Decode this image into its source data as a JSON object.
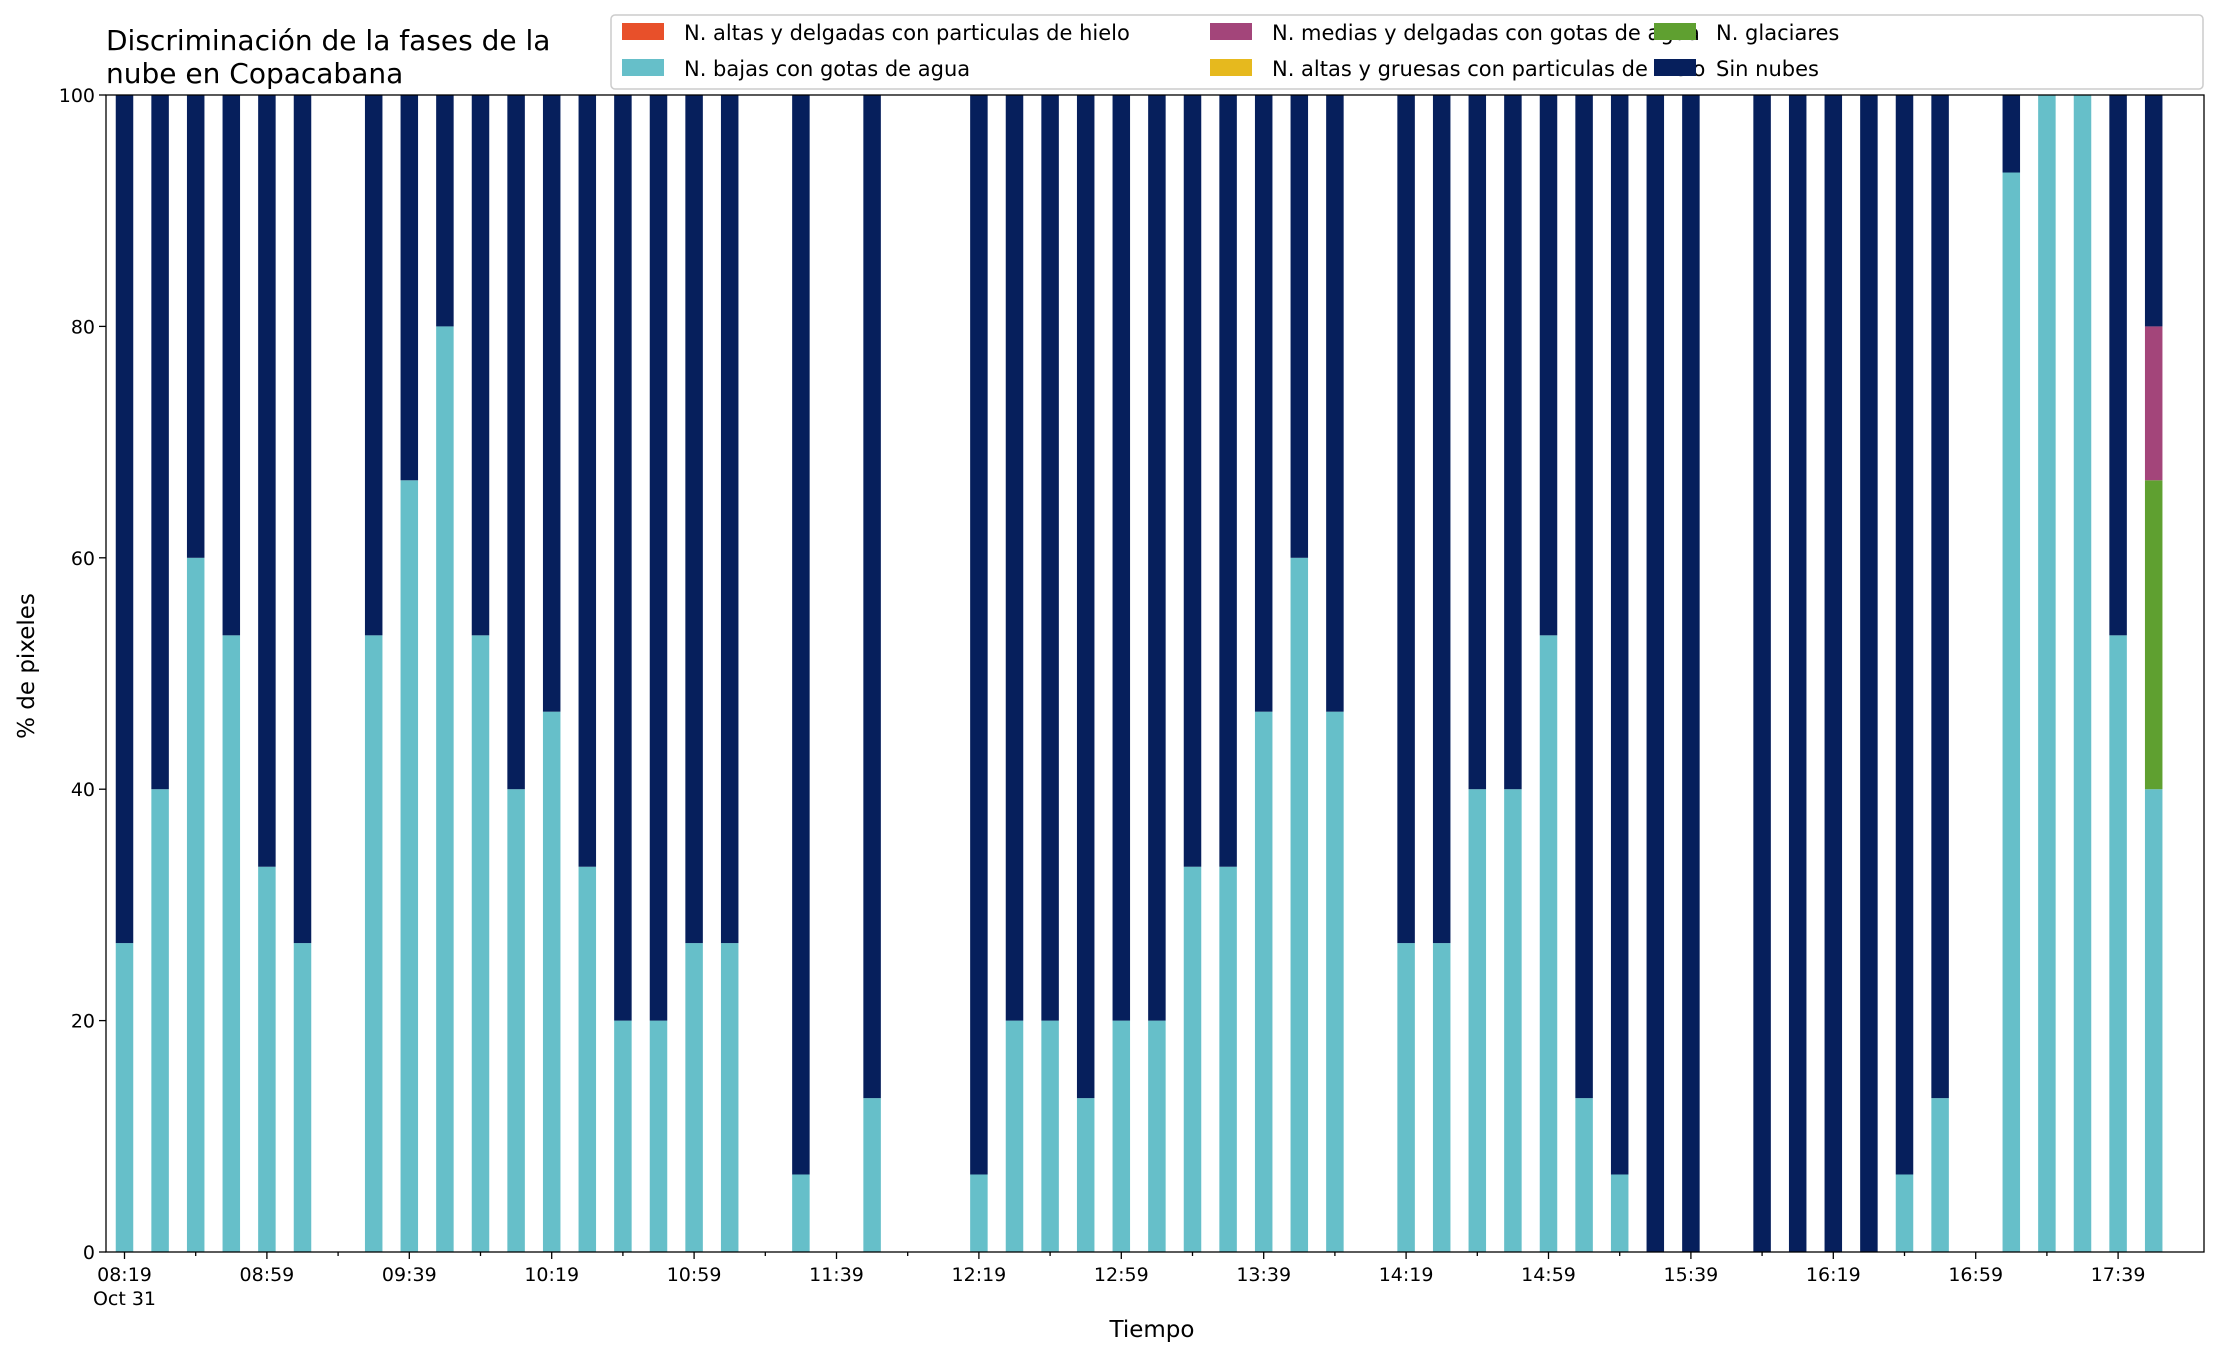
{
  "chart_data": {
    "type": "bar",
    "stacked": true,
    "title_lines": [
      "Discriminación de la fases de la",
      "nube en Copacabana"
    ],
    "xlabel": "Tiempo",
    "ylabel": "% de pixeles",
    "ylim": [
      0,
      100
    ],
    "y_ticks": [
      0,
      20,
      40,
      60,
      80,
      100
    ],
    "x_tick_labels": [
      "08:19",
      "08:59",
      "09:39",
      "10:19",
      "10:59",
      "11:39",
      "12:19",
      "12:59",
      "13:39",
      "14:19",
      "14:59",
      "15:39",
      "16:19",
      "16:59",
      "17:39"
    ],
    "x_date_label": "Oct 31",
    "x_start": "08:19",
    "x_step_minutes": 10,
    "grid": false,
    "legend_position": "top-right",
    "times": [
      "08:19",
      "08:29",
      "08:39",
      "08:49",
      "08:59",
      "09:09",
      "09:19",
      "09:29",
      "09:39",
      "09:49",
      "09:59",
      "10:09",
      "10:19",
      "10:29",
      "10:39",
      "10:49",
      "10:59",
      "11:09",
      "11:19",
      "11:29",
      "11:39",
      "11:49",
      "11:59",
      "12:09",
      "12:19",
      "12:29",
      "12:39",
      "12:49",
      "12:59",
      "13:09",
      "13:19",
      "13:29",
      "13:39",
      "13:49",
      "13:59",
      "14:09",
      "14:19",
      "14:29",
      "14:39",
      "14:49",
      "14:59",
      "15:09",
      "15:19",
      "15:29",
      "15:39",
      "15:49",
      "15:59",
      "16:09",
      "16:19",
      "16:29",
      "16:39",
      "16:49",
      "16:59",
      "17:09",
      "17:19",
      "17:29",
      "17:39",
      "17:49"
    ],
    "series": [
      {
        "name": "N. altas y delgadas con particulas de hielo",
        "color": "#e8502a",
        "values": [
          0,
          0,
          0,
          0,
          0,
          0,
          0,
          0,
          0,
          0,
          0,
          0,
          0,
          0,
          0,
          0,
          0,
          0,
          0,
          0,
          0,
          0,
          0,
          0,
          0,
          0,
          0,
          0,
          0,
          0,
          0,
          0,
          0,
          0,
          0,
          0,
          0,
          0,
          0,
          0,
          0,
          0,
          0,
          0,
          0,
          0,
          0,
          0,
          0,
          0,
          0,
          0,
          0,
          0,
          0,
          0,
          0,
          0
        ]
      },
      {
        "name": "N. altas y gruesas con particulas de hielo",
        "color": "#e6b91e",
        "values": [
          0,
          0,
          0,
          0,
          0,
          0,
          0,
          0,
          0,
          0,
          0,
          0,
          0,
          0,
          0,
          0,
          0,
          0,
          0,
          0,
          0,
          0,
          0,
          0,
          0,
          0,
          0,
          0,
          0,
          0,
          0,
          0,
          0,
          0,
          0,
          0,
          0,
          0,
          0,
          0,
          0,
          0,
          0,
          0,
          0,
          0,
          0,
          0,
          0,
          0,
          0,
          0,
          0,
          0,
          0,
          0,
          0,
          0
        ]
      },
      {
        "name": "N. bajas con gotas de agua",
        "color": "#66bfc9",
        "values": [
          26.7,
          40,
          60,
          53.3,
          33.3,
          26.7,
          null,
          53.3,
          66.7,
          80,
          53.3,
          40,
          46.7,
          33.3,
          20,
          20,
          26.7,
          26.7,
          null,
          6.7,
          null,
          13.3,
          null,
          null,
          6.7,
          20,
          20,
          13.3,
          20,
          20,
          33.3,
          33.3,
          46.7,
          60,
          46.7,
          null,
          26.7,
          26.7,
          40,
          40,
          53.3,
          13.3,
          6.7,
          0,
          0,
          null,
          0,
          0,
          0,
          0,
          6.7,
          13.3,
          null,
          93.3,
          100,
          100,
          53.3,
          40
        ]
      },
      {
        "name": "N. glaciares",
        "color": "#5fa030",
        "values": [
          0,
          0,
          0,
          0,
          0,
          0,
          null,
          0,
          0,
          0,
          0,
          0,
          0,
          0,
          0,
          0,
          0,
          0,
          null,
          0,
          null,
          0,
          null,
          null,
          0,
          0,
          0,
          0,
          0,
          0,
          0,
          0,
          0,
          0,
          0,
          null,
          0,
          0,
          0,
          0,
          0,
          0,
          0,
          0,
          0,
          null,
          0,
          0,
          0,
          0,
          0,
          0,
          null,
          0,
          0,
          0,
          0,
          26.7
        ]
      },
      {
        "name": "N. medias y delgadas con gotas de agua",
        "color": "#a3457a",
        "values": [
          0,
          0,
          0,
          0,
          0,
          0,
          null,
          0,
          0,
          0,
          0,
          0,
          0,
          0,
          0,
          0,
          0,
          0,
          null,
          0,
          null,
          0,
          null,
          null,
          0,
          0,
          0,
          0,
          0,
          0,
          0,
          0,
          0,
          0,
          0,
          null,
          0,
          0,
          0,
          0,
          0,
          0,
          0,
          0,
          0,
          null,
          0,
          0,
          0,
          0,
          0,
          0,
          null,
          0,
          0,
          0,
          0,
          13.3
        ]
      },
      {
        "name": "Sin nubes",
        "color": "#061f5c",
        "values": [
          73.3,
          60,
          40,
          46.7,
          66.7,
          73.3,
          null,
          46.7,
          33.3,
          20,
          46.7,
          60,
          53.3,
          66.7,
          80,
          80,
          73.3,
          73.3,
          null,
          93.3,
          null,
          86.7,
          null,
          null,
          93.3,
          80,
          80,
          86.7,
          80,
          80,
          66.7,
          66.7,
          53.3,
          40,
          53.3,
          null,
          73.3,
          73.3,
          60,
          60,
          46.7,
          86.7,
          93.3,
          100,
          100,
          null,
          100,
          100,
          100,
          100,
          93.3,
          86.7,
          null,
          6.7,
          0,
          0,
          46.7,
          20
        ]
      }
    ]
  }
}
